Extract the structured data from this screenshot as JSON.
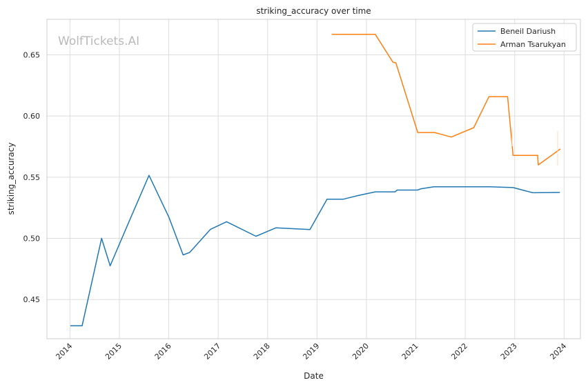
{
  "chart_data": {
    "type": "line",
    "title": "striking_accuracy over time",
    "xlabel": "Date",
    "ylabel": "striking_accuracy",
    "watermark": "WolfTickets.AI",
    "x_ticks": [
      "2014",
      "2015",
      "2016",
      "2017",
      "2018",
      "2019",
      "2020",
      "2021",
      "2022",
      "2023",
      "2024"
    ],
    "y_ticks": [
      "0.45",
      "0.50",
      "0.55",
      "0.60",
      "0.65"
    ],
    "xlim": [
      "2013-07-15",
      "2024-05-01"
    ],
    "ylim": [
      0.418,
      0.679
    ],
    "grid": true,
    "legend_position": "top-right",
    "series": [
      {
        "name": "Beneil Dariush",
        "color": "#1f77b4",
        "points": [
          [
            "2014-01-04",
            0.4286
          ],
          [
            "2014-04-01",
            0.4286
          ],
          [
            "2014-08-23",
            0.5
          ],
          [
            "2014-10-25",
            0.4776
          ],
          [
            "2015-02-28",
            0.5102
          ],
          [
            "2015-08-08",
            0.5515
          ],
          [
            "2016-01-02",
            0.5173
          ],
          [
            "2016-04-16",
            0.4865
          ],
          [
            "2016-06-04",
            0.4885
          ],
          [
            "2016-11-05",
            0.5074
          ],
          [
            "2017-03-04",
            0.5136
          ],
          [
            "2017-10-07",
            0.5017
          ],
          [
            "2018-03-03",
            0.5086
          ],
          [
            "2018-11-10",
            0.5072
          ],
          [
            "2019-03-16",
            0.532
          ],
          [
            "2019-07-13",
            0.532
          ],
          [
            "2019-11-02",
            0.535
          ],
          [
            "2020-03-07",
            0.538
          ],
          [
            "2020-08-01",
            0.538
          ],
          [
            "2020-08-15",
            0.5395
          ],
          [
            "2021-01-15",
            0.5395
          ],
          [
            "2021-02-06",
            0.5405
          ],
          [
            "2021-05-15",
            0.5422
          ],
          [
            "2022-06-30",
            0.5422
          ],
          [
            "2022-12-20",
            0.5415
          ],
          [
            "2023-05-15",
            0.5373
          ],
          [
            "2023-12-01",
            0.5375
          ]
        ]
      },
      {
        "name": "Arman Tsarukyan",
        "color": "#ff7f0e",
        "points": [
          [
            "2019-04-20",
            0.6667
          ],
          [
            "2020-03-07",
            0.6667
          ],
          [
            "2020-07-15",
            0.644
          ],
          [
            "2020-08-06",
            0.6435
          ],
          [
            "2021-01-15",
            0.5865
          ],
          [
            "2021-05-20",
            0.5865
          ],
          [
            "2021-09-20",
            0.5828
          ],
          [
            "2022-03-05",
            0.5905
          ],
          [
            "2022-06-25",
            0.6158
          ],
          [
            "2022-11-10",
            0.6158
          ],
          [
            "2022-12-20",
            0.5678
          ],
          [
            "2023-06-20",
            0.5678
          ],
          [
            "2023-06-24",
            0.56
          ],
          [
            "2023-12-05",
            0.5731
          ]
        ]
      }
    ]
  }
}
